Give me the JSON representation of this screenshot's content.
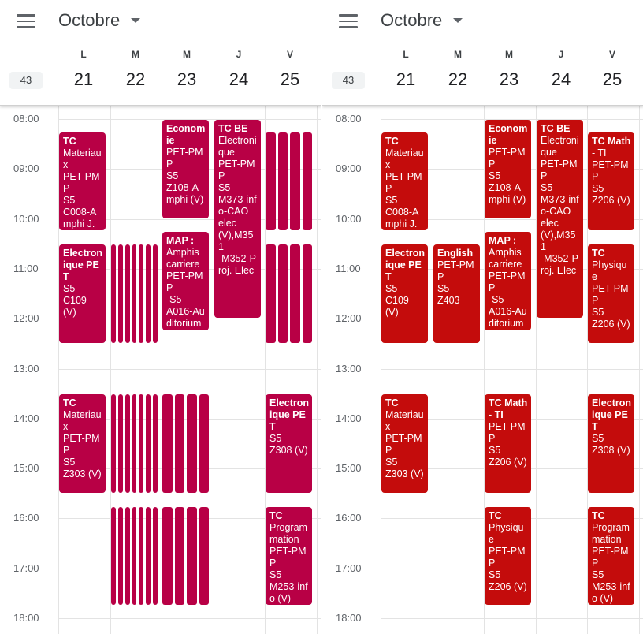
{
  "colors": {
    "left_event": "#b80045",
    "right_event": "#c40c0c"
  },
  "header": {
    "month_label": "Octobre",
    "week_number": "43",
    "days": [
      {
        "dow": "L",
        "num": "21"
      },
      {
        "dow": "M",
        "num": "22"
      },
      {
        "dow": "M",
        "num": "23"
      },
      {
        "dow": "J",
        "num": "24"
      },
      {
        "dow": "V",
        "num": "25"
      }
    ]
  },
  "hours": [
    "08:00",
    "09:00",
    "10:00",
    "11:00",
    "12:00",
    "13:00",
    "14:00",
    "15:00",
    "16:00",
    "17:00",
    "18:00"
  ],
  "left_view": {
    "events": [
      {
        "day": 0,
        "start": "08:15",
        "end": "10:15",
        "lines": [
          "TC",
          "Materiaux",
          "PET-PMP",
          "S5",
          "C008-Amphi J."
        ]
      },
      {
        "day": 0,
        "start": "10:30",
        "end": "12:30",
        "lines": [
          "Electronique PET",
          "S5",
          "C109 (V)"
        ]
      },
      {
        "day": 0,
        "start": "13:30",
        "end": "15:30",
        "lines": [
          "TC",
          "Materiaux",
          "PET-PMP",
          "S5",
          "Z303 (V)"
        ]
      },
      {
        "day": 2,
        "start": "08:00",
        "end": "10:00",
        "lines": [
          "Economie",
          "PET-PMP",
          "S5",
          "Z108-Amphi (V)"
        ]
      },
      {
        "day": 2,
        "start": "10:15",
        "end": "12:15",
        "lines": [
          "MAP :",
          "Amphis",
          "carriere",
          "PET-PMP",
          "-S5",
          "A016-Auditorium"
        ]
      },
      {
        "day": 3,
        "start": "08:00",
        "end": "12:00",
        "lines": [
          "TC BE",
          "Electronique",
          "PET-PMP",
          "S5",
          "M373-info-CAO",
          "elec",
          "(V),M351",
          "-M352-Proj. Elec"
        ]
      },
      {
        "day": 4,
        "start": "13:30",
        "end": "15:30",
        "lines": [
          "Electronique PET",
          "S5",
          "Z308 (V)"
        ]
      },
      {
        "day": 4,
        "start": "15:45",
        "end": "17:45",
        "lines": [
          "TC",
          "Programmation",
          "PET-PMP",
          "S5",
          "M253-info (V)"
        ]
      }
    ],
    "strip_groups": [
      {
        "day": 1,
        "start": "10:30",
        "end": "12:30",
        "count": 7
      },
      {
        "day": 1,
        "start": "13:30",
        "end": "15:30",
        "count": 7
      },
      {
        "day": 1,
        "start": "15:45",
        "end": "17:45",
        "count": 7
      },
      {
        "day": 2,
        "start": "13:30",
        "end": "15:30",
        "count": 4
      },
      {
        "day": 2,
        "start": "15:45",
        "end": "17:45",
        "count": 4
      },
      {
        "day": 4,
        "start": "08:15",
        "end": "10:15",
        "count": 4
      },
      {
        "day": 4,
        "start": "10:30",
        "end": "12:30",
        "count": 4
      }
    ]
  },
  "right_view": {
    "events": [
      {
        "day": 0,
        "start": "08:15",
        "end": "10:15",
        "lines": [
          "TC",
          "Materiaux",
          "PET-PMP",
          "S5",
          "C008-Amphi J."
        ]
      },
      {
        "day": 0,
        "start": "10:30",
        "end": "12:30",
        "lines": [
          "Electronique PET",
          "S5",
          "C109 (V)"
        ]
      },
      {
        "day": 0,
        "start": "13:30",
        "end": "15:30",
        "lines": [
          "TC",
          "Materiaux",
          "PET-PMP",
          "S5",
          "Z303 (V)"
        ]
      },
      {
        "day": 1,
        "start": "10:30",
        "end": "12:30",
        "lines": [
          "English",
          "PET-PMP",
          "S5",
          "Z403"
        ]
      },
      {
        "day": 2,
        "start": "08:00",
        "end": "10:00",
        "lines": [
          "Economie",
          "PET-PMP",
          "S5",
          "Z108-Amphi (V)"
        ]
      },
      {
        "day": 2,
        "start": "10:15",
        "end": "12:15",
        "lines": [
          "MAP :",
          "Amphis",
          "carriere",
          "PET-PMP",
          "-S5",
          "A016-Auditorium"
        ]
      },
      {
        "day": 2,
        "start": "13:30",
        "end": "15:30",
        "lines": [
          "TC Math - TI",
          "PET-PMP",
          "S5",
          "Z206 (V)"
        ]
      },
      {
        "day": 2,
        "start": "15:45",
        "end": "17:45",
        "lines": [
          "TC",
          "Physique",
          "PET-PMP",
          "S5",
          "Z206 (V)"
        ]
      },
      {
        "day": 3,
        "start": "08:00",
        "end": "12:00",
        "lines": [
          "TC BE",
          "Electronique",
          "PET-PMP",
          "S5",
          "M373-info-CAO",
          "elec",
          "(V),M351",
          "-M352-Proj. Elec"
        ]
      },
      {
        "day": 4,
        "start": "08:15",
        "end": "10:15",
        "lines": [
          "TC Math",
          "- TI",
          "PET-PMP",
          "S5",
          "Z206 (V)"
        ]
      },
      {
        "day": 4,
        "start": "10:30",
        "end": "12:30",
        "lines": [
          "TC",
          "Physique",
          "PET-PMP",
          "S5",
          "Z206 (V)"
        ]
      },
      {
        "day": 4,
        "start": "13:30",
        "end": "15:30",
        "lines": [
          "Electronique PET",
          "S5",
          "Z308 (V)"
        ]
      },
      {
        "day": 4,
        "start": "15:45",
        "end": "17:45",
        "lines": [
          "TC",
          "Programmation",
          "PET-PMP",
          "S5",
          "M253-info (V)"
        ]
      }
    ],
    "strip_groups": []
  }
}
